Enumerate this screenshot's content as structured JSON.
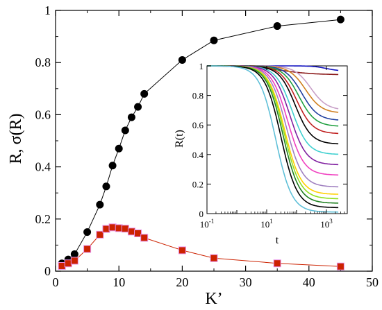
{
  "chart_data": [
    {
      "type": "scatter",
      "xlabel": "K’",
      "ylabel": "R, σ(R)",
      "xlim": [
        0,
        50
      ],
      "ylim": [
        0,
        1
      ],
      "x_ticks": [
        0,
        10,
        20,
        30,
        40,
        50
      ],
      "y_ticks": [
        0,
        0.2,
        0.4,
        0.6,
        0.8,
        1
      ],
      "x_tick_labels": [
        "0",
        "10",
        "20",
        "30",
        "40",
        "50"
      ],
      "y_tick_labels": [
        "0",
        "0.2",
        "0.4",
        "0.6",
        "0.8",
        "1"
      ],
      "grid": false,
      "series": [
        {
          "color": "#000000",
          "marker": "circle",
          "x": [
            1,
            2,
            3,
            5,
            7,
            8,
            9,
            10,
            11,
            12,
            13,
            14,
            20,
            25,
            35,
            45
          ],
          "y": [
            0.03,
            0.045,
            0.065,
            0.15,
            0.255,
            0.325,
            0.405,
            0.47,
            0.54,
            0.59,
            0.63,
            0.68,
            0.81,
            0.885,
            0.94,
            0.965
          ]
        },
        {
          "color": "#cc2200",
          "marker": "square",
          "x": [
            1,
            2,
            3,
            5,
            7,
            8,
            9,
            10,
            11,
            12,
            13,
            14,
            20,
            25,
            35,
            45
          ],
          "y": [
            0.02,
            0.03,
            0.04,
            0.085,
            0.14,
            0.162,
            0.168,
            0.165,
            0.163,
            0.152,
            0.145,
            0.128,
            0.08,
            0.05,
            0.03,
            0.018
          ]
        }
      ]
    },
    {
      "type": "line",
      "xlabel": "t",
      "ylabel": "R(t)",
      "xscale": "log",
      "xlim": [
        0.1,
        5000
      ],
      "ylim": [
        0,
        1
      ],
      "x_ticks": [
        0.1,
        10,
        1000
      ],
      "x_tick_base": [
        "10",
        "10",
        "10"
      ],
      "x_tick_exp": [
        "-1",
        "1",
        "3"
      ],
      "y_ticks": [
        0,
        0.2,
        0.4,
        0.6,
        0.8,
        1
      ],
      "y_tick_labels": [
        "0",
        "0.2",
        "0.4",
        "0.6",
        "0.8",
        "1"
      ],
      "grid": false,
      "series": [
        {
          "color": "#1010c0",
          "final": 0.965,
          "tc": 1000,
          "k": 2.0
        },
        {
          "color": "#8b1a1a",
          "final": 0.94,
          "tc": 30,
          "k": 0.8
        },
        {
          "color": "#c8a0c8",
          "final": 0.7,
          "tc": 300,
          "k": 1.6
        },
        {
          "color": "#d08020",
          "final": 0.68,
          "tc": 200,
          "k": 1.6
        },
        {
          "color": "#2040a0",
          "final": 0.63,
          "tc": 150,
          "k": 1.6
        },
        {
          "color": "#20a040",
          "final": 0.59,
          "tc": 120,
          "k": 1.6
        },
        {
          "color": "#c02020",
          "final": 0.54,
          "tc": 100,
          "k": 1.6
        },
        {
          "color": "#000000",
          "final": 0.47,
          "tc": 90,
          "k": 1.6
        },
        {
          "color": "#40d0d0",
          "final": 0.4,
          "tc": 70,
          "k": 1.6
        },
        {
          "color": "#8020a0",
          "final": 0.33,
          "tc": 60,
          "k": 1.6
        },
        {
          "color": "#f040c0",
          "final": 0.26,
          "tc": 50,
          "k": 1.6
        },
        {
          "color": "#a080c0",
          "final": 0.18,
          "tc": 45,
          "k": 1.6
        },
        {
          "color": "#ffd000",
          "final": 0.13,
          "tc": 40,
          "k": 1.6
        },
        {
          "color": "#90e020",
          "final": 0.1,
          "tc": 38,
          "k": 1.6
        },
        {
          "color": "#208020",
          "final": 0.07,
          "tc": 35,
          "k": 1.6
        },
        {
          "color": "#000000",
          "final": 0.04,
          "tc": 30,
          "k": 1.6
        },
        {
          "color": "#60c0d8",
          "final": 0.01,
          "tc": 20,
          "k": 1.6
        }
      ]
    }
  ]
}
